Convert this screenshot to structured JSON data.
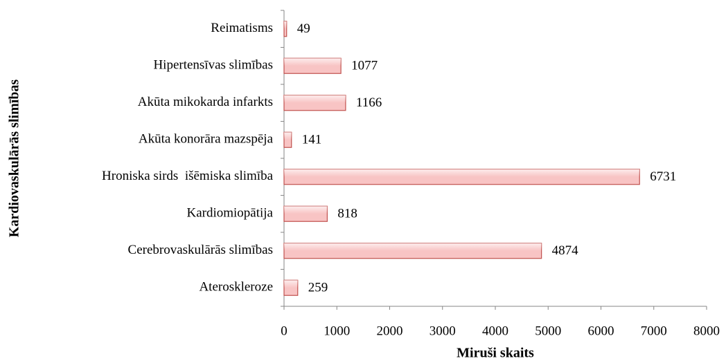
{
  "chart_data": {
    "type": "bar",
    "orientation": "horizontal",
    "x_label": "Miruši skaits",
    "y_label": "Kardiovaskulārās slimības",
    "categories": [
      "Reimatisms",
      "Hipertensīvas slimības",
      "Akūta mikokarda infarkts",
      "Akūta konorāra mazspēja",
      "Hroniska sirds  išēmiska slimība",
      "Kardiomiopātija",
      "Cerebrovaskulārās slimības",
      "Ateroskleroze"
    ],
    "values": [
      49,
      1077,
      1166,
      141,
      6731,
      818,
      4874,
      259
    ],
    "color": "#f8c4c4",
    "xlim": [
      0,
      8000
    ],
    "xticks": [
      0,
      1000,
      2000,
      3000,
      4000,
      5000,
      6000,
      7000,
      8000
    ],
    "grid": false
  }
}
